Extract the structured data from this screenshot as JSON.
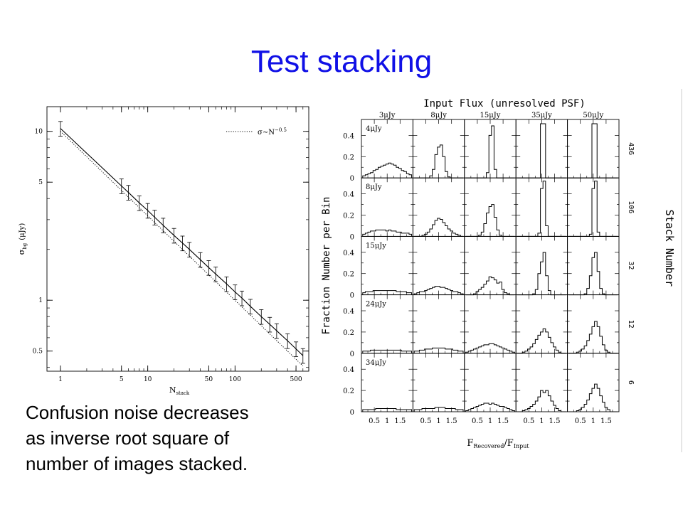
{
  "slide": {
    "title": "Test stacking",
    "caption_lines": [
      "Confusion noise decreases",
      "as inverse root square of",
      "number of images stacked."
    ]
  },
  "chart_data": [
    {
      "type": "line",
      "scale": "log-log",
      "xlabel": "N",
      "xlabel_sub": "stack",
      "ylabel": "σ",
      "ylabel_sub": "bg",
      "ylabel_unit": "(μJy)",
      "xlim": [
        0.7,
        700
      ],
      "ylim": [
        0.38,
        14
      ],
      "x_ticks": [
        1,
        5,
        10,
        50,
        100,
        500
      ],
      "y_ticks": [
        10,
        5,
        1,
        0.5
      ],
      "legend": {
        "label": "σ∼N",
        "exponent": "−0.5",
        "position": "top-right",
        "line_style": "dotted"
      },
      "measured_x": [
        1,
        5,
        6,
        8,
        10,
        12,
        15,
        20,
        25,
        30,
        40,
        50,
        60,
        80,
        100,
        120,
        150,
        200,
        250,
        300,
        400,
        500,
        600
      ],
      "measured_y": [
        10.4,
        4.75,
        4.35,
        3.77,
        3.4,
        3.1,
        2.78,
        2.42,
        2.18,
        2.0,
        1.74,
        1.56,
        1.43,
        1.25,
        1.12,
        1.03,
        0.92,
        0.8,
        0.72,
        0.66,
        0.575,
        0.515,
        0.47
      ],
      "error_bar_fraction": 0.1,
      "model_x": [
        1,
        600
      ],
      "model_y": [
        10.0,
        0.408
      ]
    },
    {
      "type": "bar",
      "title": "Input Flux (unresolved PSF)",
      "column_labels": [
        "3μJy",
        "8μJy",
        "15μJy",
        "35μJy",
        "50μJy"
      ],
      "row_inner_labels": [
        "4μJy",
        "8μJy",
        "15μJy",
        "24μJy",
        "34μJy"
      ],
      "row_right_labels": [
        "436",
        "106",
        "32",
        "12",
        "6"
      ],
      "right_axis_title": "Stack Number",
      "ylabel": "Fraction Number per Bin",
      "xlabel": "F",
      "xlabel_sub1": "Recovered",
      "xlabel_sep": "/F",
      "xlabel_sub2": "Input",
      "y_ticks": [
        "0",
        "0.2",
        "0.4"
      ],
      "x_ticks": [
        "0.5",
        "1",
        "1.5"
      ],
      "ylim": [
        0,
        0.55
      ],
      "x_range": [
        0.05,
        1.95
      ],
      "bins": 19,
      "histograms": [
        [
          [
            0.02,
            0.03,
            0.04,
            0.05,
            0.07,
            0.08,
            0.1,
            0.11,
            0.12,
            0.13,
            0.14,
            0.13,
            0.12,
            0.1,
            0.09,
            0.07,
            0.06,
            0.04,
            0.03
          ],
          [
            0,
            0,
            0,
            0,
            0,
            0,
            0.02,
            0.08,
            0.22,
            0.29,
            0.31,
            0.2,
            0.06,
            0.01,
            0,
            0,
            0,
            0,
            0
          ],
          [
            0,
            0,
            0,
            0,
            0,
            0,
            0,
            0,
            0.05,
            0.4,
            0.49,
            0.08,
            0,
            0,
            0,
            0,
            0,
            0,
            0
          ],
          [
            0,
            0,
            0,
            0,
            0,
            0,
            0,
            0,
            0,
            0.51,
            0.51,
            0,
            0,
            0,
            0,
            0,
            0,
            0,
            0
          ],
          [
            0,
            0,
            0,
            0,
            0,
            0,
            0,
            0,
            0,
            0.51,
            0.51,
            0,
            0,
            0,
            0,
            0,
            0,
            0,
            0
          ]
        ],
        [
          [
            0.02,
            0.03,
            0.04,
            0.05,
            0.05,
            0.06,
            0.06,
            0.06,
            0.06,
            0.05,
            0.06,
            0.05,
            0.05,
            0.04,
            0.04,
            0.03,
            0.03,
            0.03,
            0.02
          ],
          [
            0,
            0,
            0,
            0.01,
            0.02,
            0.04,
            0.07,
            0.11,
            0.15,
            0.17,
            0.16,
            0.13,
            0.1,
            0.07,
            0.05,
            0.03,
            0.02,
            0.01,
            0
          ],
          [
            0,
            0,
            0,
            0,
            0,
            0.01,
            0.04,
            0.12,
            0.22,
            0.28,
            0.3,
            0.18,
            0.06,
            0.01,
            0,
            0,
            0,
            0,
            0
          ],
          [
            0,
            0,
            0,
            0,
            0,
            0,
            0,
            0,
            0.03,
            0.45,
            0.52,
            0.1,
            0,
            0,
            0,
            0,
            0,
            0,
            0
          ],
          [
            0,
            0,
            0,
            0,
            0,
            0,
            0,
            0,
            0.02,
            0.45,
            0.52,
            0.04,
            0,
            0,
            0,
            0,
            0,
            0,
            0
          ]
        ],
        [
          [
            0.02,
            0.03,
            0.03,
            0.03,
            0.04,
            0.04,
            0.04,
            0.04,
            0.04,
            0.04,
            0.04,
            0.04,
            0.04,
            0.03,
            0.03,
            0.03,
            0.03,
            0.02,
            0.02
          ],
          [
            0.01,
            0.02,
            0.03,
            0.03,
            0.04,
            0.05,
            0.06,
            0.07,
            0.08,
            0.08,
            0.07,
            0.07,
            0.06,
            0.05,
            0.04,
            0.03,
            0.03,
            0.02,
            0.01
          ],
          [
            0,
            0,
            0,
            0.01,
            0.03,
            0.05,
            0.07,
            0.1,
            0.13,
            0.17,
            0.16,
            0.14,
            0.11,
            0.12,
            0.05,
            0.02,
            0.01,
            0,
            0
          ],
          [
            0,
            0,
            0,
            0,
            0,
            0,
            0.01,
            0.05,
            0.2,
            0.31,
            0.4,
            0.18,
            0.04,
            0,
            0,
            0,
            0,
            0,
            0
          ],
          [
            0,
            0,
            0,
            0,
            0,
            0,
            0.01,
            0.06,
            0.18,
            0.35,
            0.4,
            0.22,
            0.06,
            0.01,
            0,
            0,
            0,
            0,
            0
          ]
        ],
        [
          [
            0.02,
            0.02,
            0.02,
            0.03,
            0.03,
            0.03,
            0.03,
            0.03,
            0.03,
            0.03,
            0.03,
            0.03,
            0.03,
            0.03,
            0.03,
            0.02,
            0.02,
            0.02,
            0.02
          ],
          [
            0.02,
            0.02,
            0.03,
            0.03,
            0.04,
            0.04,
            0.04,
            0.05,
            0.05,
            0.05,
            0.05,
            0.05,
            0.04,
            0.04,
            0.04,
            0.03,
            0.03,
            0.02,
            0.02
          ],
          [
            0.01,
            0.02,
            0.03,
            0.04,
            0.05,
            0.06,
            0.07,
            0.08,
            0.08,
            0.09,
            0.09,
            0.08,
            0.07,
            0.06,
            0.05,
            0.04,
            0.03,
            0.02,
            0.01
          ],
          [
            0,
            0,
            0.01,
            0.02,
            0.04,
            0.06,
            0.09,
            0.13,
            0.17,
            0.2,
            0.23,
            0.2,
            0.15,
            0.1,
            0.06,
            0.03,
            0.01,
            0,
            0
          ],
          [
            0,
            0,
            0,
            0.01,
            0.02,
            0.04,
            0.07,
            0.12,
            0.18,
            0.25,
            0.3,
            0.25,
            0.16,
            0.08,
            0.03,
            0.01,
            0,
            0,
            0
          ]
        ],
        [
          [
            0.02,
            0.02,
            0.02,
            0.02,
            0.02,
            0.03,
            0.03,
            0.03,
            0.03,
            0.03,
            0.03,
            0.03,
            0.03,
            0.02,
            0.02,
            0.02,
            0.02,
            0.02,
            0.02
          ],
          [
            0.02,
            0.02,
            0.02,
            0.03,
            0.03,
            0.03,
            0.03,
            0.03,
            0.04,
            0.04,
            0.04,
            0.04,
            0.03,
            0.03,
            0.03,
            0.03,
            0.02,
            0.02,
            0.02
          ],
          [
            0.01,
            0.02,
            0.03,
            0.04,
            0.05,
            0.06,
            0.07,
            0.08,
            0.08,
            0.07,
            0.08,
            0.07,
            0.06,
            0.05,
            0.05,
            0.04,
            0.03,
            0.02,
            0.01
          ],
          [
            0,
            0,
            0.01,
            0.02,
            0.03,
            0.05,
            0.07,
            0.1,
            0.14,
            0.2,
            0.18,
            0.2,
            0.15,
            0.1,
            0.06,
            0.03,
            0.01,
            0,
            0
          ],
          [
            0,
            0,
            0,
            0.01,
            0.02,
            0.04,
            0.07,
            0.11,
            0.17,
            0.22,
            0.26,
            0.22,
            0.15,
            0.09,
            0.04,
            0.02,
            0,
            0,
            0
          ]
        ]
      ]
    }
  ]
}
